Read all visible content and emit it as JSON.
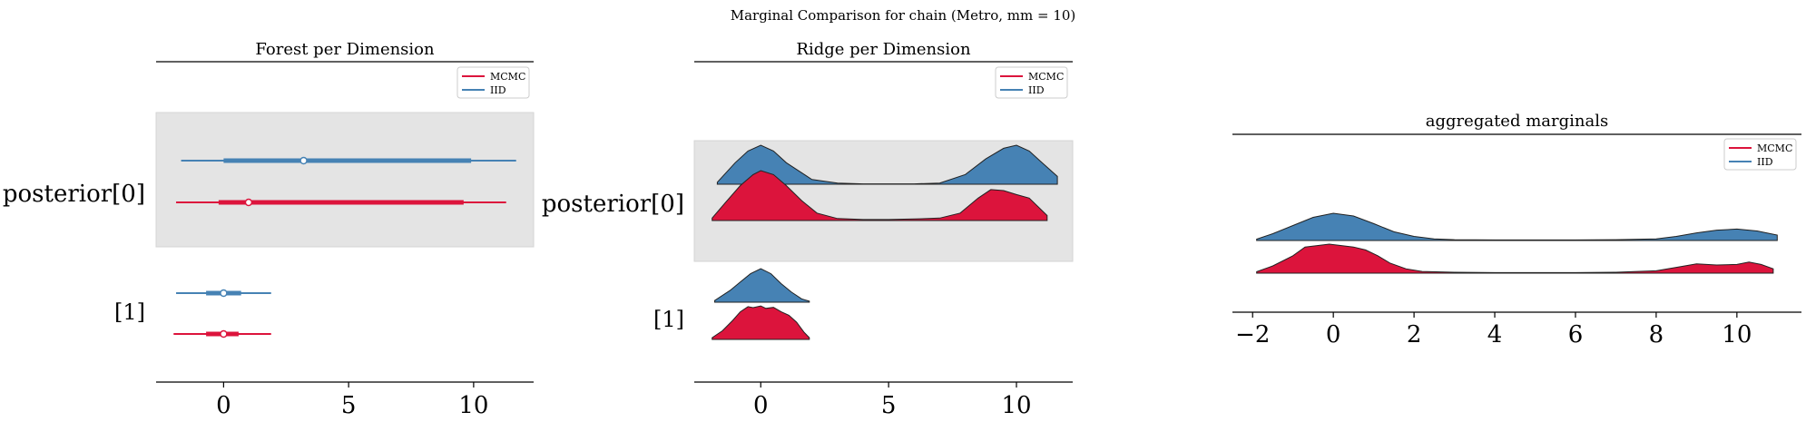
{
  "suptitle": "Marginal Comparison for chain (Metro, mm = 10)",
  "colors": {
    "mcmc": "#dc143c",
    "iid": "#4682b4",
    "band": "#e4e4e4"
  },
  "chart_data": [
    {
      "type": "forest",
      "title": "Forest per Dimension",
      "legend": [
        "MCMC",
        "IID"
      ],
      "legend_position": "top-right",
      "y_categories": [
        "posterior[0]",
        "[1]"
      ],
      "shaded_band": "posterior[0]",
      "xlim": [
        -2.7,
        12.4
      ],
      "xticks": [
        "0",
        "5",
        "10"
      ],
      "series": [
        {
          "name": "MCMC",
          "rows": [
            {
              "category": "posterior[0]",
              "hdi": [
                -1.9,
                11.3
              ],
              "iqr": [
                -0.2,
                9.6
              ],
              "median": 1.0
            },
            {
              "category": "[1]",
              "hdi": [
                -2.0,
                1.9
              ],
              "iqr": [
                -0.7,
                0.6
              ],
              "median": 0.0
            }
          ]
        },
        {
          "name": "IID",
          "rows": [
            {
              "category": "posterior[0]",
              "hdi": [
                -1.7,
                11.7
              ],
              "iqr": [
                0.0,
                9.9
              ],
              "median": 3.2
            },
            {
              "category": "[1]",
              "hdi": [
                -1.9,
                1.9
              ],
              "iqr": [
                -0.7,
                0.7
              ],
              "median": 0.0
            }
          ]
        }
      ]
    },
    {
      "type": "ridgeline",
      "title": "Ridge per Dimension",
      "legend": [
        "MCMC",
        "IID"
      ],
      "legend_position": "top-right",
      "y_categories": [
        "posterior[0]",
        "[1]"
      ],
      "shaded_band": "posterior[0]",
      "xlim": [
        -2.6,
        12.2
      ],
      "xticks": [
        "0",
        "5",
        "10"
      ],
      "series": [
        {
          "name": "IID",
          "rows": [
            {
              "category": "posterior[0]",
              "x": [
                -1.7,
                -1,
                -0.5,
                0,
                0.5,
                1,
                2,
                3,
                4,
                5,
                6,
                7,
                8,
                8.8,
                9.5,
                10,
                10.5,
                11,
                11.6
              ],
              "y": [
                0.05,
                0.55,
                0.85,
                1,
                0.85,
                0.55,
                0.12,
                0.03,
                0.01,
                0.01,
                0.01,
                0.03,
                0.25,
                0.65,
                0.92,
                1,
                0.85,
                0.55,
                0.2
              ]
            },
            {
              "category": "[1]",
              "x": [
                -1.8,
                -1.2,
                -0.8,
                -0.4,
                0,
                0.4,
                0.8,
                1.2,
                1.6,
                1.9
              ],
              "y": [
                0.05,
                0.35,
                0.6,
                0.85,
                1,
                0.85,
                0.55,
                0.3,
                0.1,
                0.03
              ]
            }
          ]
        },
        {
          "name": "MCMC",
          "rows": [
            {
              "category": "posterior[0]",
              "x": [
                -1.9,
                -1.4,
                -0.8,
                -0.3,
                0,
                0.5,
                1,
                1.6,
                2.2,
                3,
                4,
                5,
                6,
                7,
                7.8,
                8.5,
                9,
                9.5,
                10,
                10.5,
                11.2
              ],
              "y": [
                0.05,
                0.35,
                0.7,
                0.92,
                1,
                0.92,
                0.7,
                0.4,
                0.15,
                0.04,
                0.02,
                0.02,
                0.03,
                0.05,
                0.15,
                0.45,
                0.62,
                0.6,
                0.52,
                0.45,
                0.1
              ]
            },
            {
              "category": "[1]",
              "x": [
                -1.9,
                -1.5,
                -1.1,
                -0.8,
                -0.5,
                -0.3,
                0,
                0.2,
                0.5,
                0.8,
                1.1,
                1.4,
                1.7,
                1.9
              ],
              "y": [
                0.05,
                0.25,
                0.55,
                0.8,
                0.95,
                0.92,
                0.97,
                0.9,
                0.93,
                0.8,
                0.7,
                0.5,
                0.2,
                0.05
              ]
            }
          ]
        }
      ]
    },
    {
      "type": "ridgeline",
      "title": "aggregated marginals",
      "legend": [
        "MCMC",
        "IID"
      ],
      "legend_position": "top-right",
      "xlim": [
        -2.5,
        11.6
      ],
      "xticks": [
        "−2",
        "0",
        "2",
        "4",
        "6",
        "8",
        "10"
      ],
      "series": [
        {
          "name": "IID",
          "x": [
            -1.9,
            -1.5,
            -1,
            -0.5,
            0,
            0.5,
            1,
            1.5,
            2,
            2.5,
            3,
            4,
            5,
            6,
            7,
            8,
            8.5,
            9,
            9.5,
            10,
            10.5,
            11
          ],
          "y": [
            0.05,
            0.25,
            0.55,
            0.85,
            1,
            0.9,
            0.62,
            0.32,
            0.15,
            0.06,
            0.03,
            0.02,
            0.02,
            0.02,
            0.03,
            0.06,
            0.15,
            0.28,
            0.38,
            0.42,
            0.35,
            0.2
          ]
        },
        {
          "name": "MCMC",
          "x": [
            -1.9,
            -1.5,
            -1,
            -0.7,
            -0.4,
            -0.1,
            0.2,
            0.5,
            0.8,
            1.1,
            1.4,
            1.8,
            2.2,
            3,
            4,
            5,
            6,
            7,
            8,
            8.5,
            9,
            9.5,
            10,
            10.3,
            10.6,
            10.9
          ],
          "y": [
            0.05,
            0.25,
            0.6,
            0.9,
            0.95,
            1,
            0.95,
            0.9,
            0.8,
            0.6,
            0.35,
            0.15,
            0.06,
            0.03,
            0.02,
            0.02,
            0.02,
            0.03,
            0.08,
            0.2,
            0.32,
            0.28,
            0.3,
            0.38,
            0.3,
            0.15
          ]
        }
      ]
    }
  ]
}
